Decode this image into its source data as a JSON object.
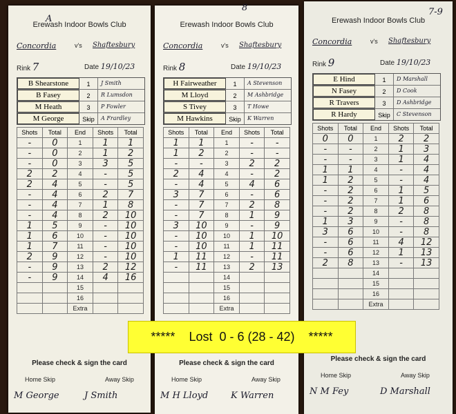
{
  "club_name": "Erewash Indoor Bowls Club",
  "labels": {
    "vs": "v's",
    "rink": "Rink",
    "date": "Date",
    "skip": "Skip",
    "shots": "Shots",
    "total": "Total",
    "end": "End",
    "check": "Please check & sign the card",
    "home_skip": "Home Skip",
    "away_skip": "Away Skip",
    "positions": [
      "1",
      "2",
      "3"
    ]
  },
  "ends": [
    "1",
    "2",
    "3",
    "4",
    "5",
    "6",
    "7",
    "8",
    "9",
    "10",
    "11",
    "12",
    "13",
    "14",
    "15",
    "16",
    "Extra"
  ],
  "cards": [
    {
      "note": "A",
      "home_team": "Concordia",
      "away_team": "Shaftesbury",
      "rink": "7",
      "date": "19/10/23",
      "home_players": [
        "B Shearstone",
        "B Fasey",
        "M Heath",
        "M George"
      ],
      "away_players": [
        "J Smith",
        "R Lumsdon",
        "P Fowler",
        "A Frardley"
      ],
      "home_shots": [
        "-",
        "-",
        "-",
        "2",
        "2",
        "-",
        "-",
        "-",
        "1",
        "1",
        "1",
        "2",
        "-",
        "-"
      ],
      "home_total": [
        "0",
        "0",
        "0",
        "2",
        "4",
        "4",
        "4",
        "4",
        "5",
        "6",
        "7",
        "9",
        "9",
        "9"
      ],
      "away_shots": [
        "1",
        "1",
        "3",
        "-",
        "-",
        "2",
        "1",
        "2",
        "-",
        "-",
        "-",
        "-",
        "2",
        "4"
      ],
      "away_total": [
        "1",
        "2",
        "5",
        "5",
        "5",
        "7",
        "8",
        "10",
        "10",
        "10",
        "10",
        "10",
        "12",
        "16"
      ],
      "home_signature": "M George",
      "away_signature": "J Smith"
    },
    {
      "note": "8",
      "home_team": "Concordia",
      "away_team": "Shaftesbury",
      "rink": "8",
      "date": "19/10/23",
      "home_players": [
        "H Fairweather",
        "M Lloyd",
        "S Tivey",
        "M Hawkins"
      ],
      "away_players": [
        "A Stevenson",
        "M Ashbridge",
        "T Howe",
        "K Warren"
      ],
      "home_shots": [
        "1",
        "1",
        "-",
        "2",
        "-",
        "3",
        "-",
        "-",
        "3",
        "-",
        "-",
        "1",
        "-"
      ],
      "home_total": [
        "1",
        "2",
        "-",
        "4",
        "4",
        "7",
        "7",
        "7",
        "10",
        "10",
        "10",
        "11",
        "11"
      ],
      "away_shots": [
        "-",
        "-",
        "2",
        "-",
        "4",
        "-",
        "2",
        "1",
        "-",
        "1",
        "1",
        "-",
        "2"
      ],
      "away_total": [
        "-",
        "-",
        "2",
        "2",
        "6",
        "6",
        "8",
        "9",
        "9",
        "10",
        "11",
        "11",
        "13"
      ],
      "home_signature": "M H Lloyd",
      "away_signature": "K Warren"
    },
    {
      "note": "7-9",
      "home_team": "Concordia",
      "away_team": "Shaftesbury",
      "rink": "9",
      "date": "19/10/23",
      "home_players": [
        "E Hind",
        "N Fasey",
        "R Travers",
        "R Hardy"
      ],
      "away_players": [
        "D Marshall",
        "D Cook",
        "D Ashbridge",
        "C Stevenson"
      ],
      "home_shots": [
        "0",
        "-",
        "-",
        "1",
        "1",
        "-",
        "-",
        "-",
        "1",
        "3",
        "-",
        "-",
        "2"
      ],
      "home_total": [
        "0",
        "-",
        "-",
        "1",
        "2",
        "2",
        "2",
        "2",
        "3",
        "6",
        "6",
        "6",
        "8"
      ],
      "away_shots": [
        "2",
        "1",
        "1",
        "-",
        "-",
        "1",
        "1",
        "2",
        "-",
        "-",
        "4",
        "1",
        "-"
      ],
      "away_total": [
        "2",
        "3",
        "4",
        "4",
        "4",
        "5",
        "6",
        "8",
        "8",
        "8",
        "12",
        "13",
        "13"
      ],
      "home_signature": "N M Fey",
      "away_signature": "D Marshall"
    }
  ],
  "banner": {
    "stars_left": "*****",
    "result": "Lost  0 - 6 (28 - 42)",
    "stars_right": "*****",
    "color": "#ffff33"
  }
}
